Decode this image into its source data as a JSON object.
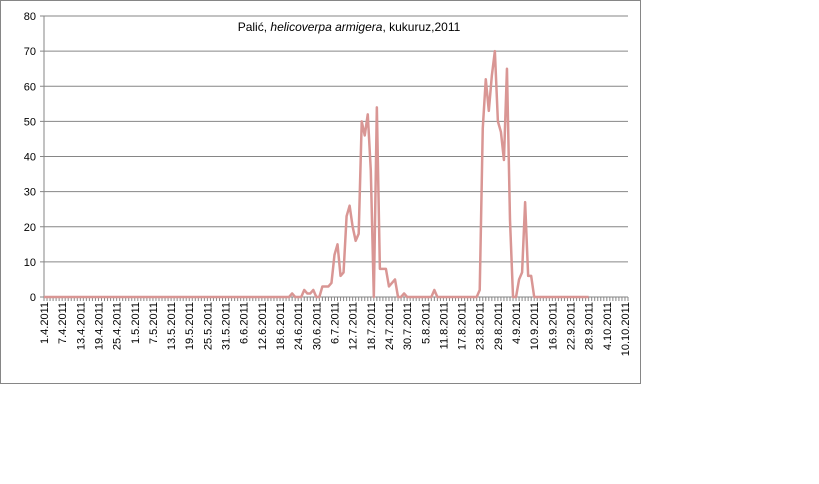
{
  "chart_data": {
    "type": "line",
    "title_parts": [
      {
        "text": "Palić, ",
        "italic": false
      },
      {
        "text": "helicoverpa armigera",
        "italic": true
      },
      {
        "text": ", kukuruz,2011",
        "italic": false
      }
    ],
    "xlabel": "",
    "ylabel": "",
    "ylim": [
      0,
      80
    ],
    "y_ticks": [
      0,
      10,
      20,
      30,
      40,
      50,
      60,
      70,
      80
    ],
    "grid": true,
    "legend": "none",
    "start_date": "1.4.2011",
    "x_tick_labels": [
      "1.4.2011",
      "7.4.2011",
      "13.4.2011",
      "19.4.2011",
      "25.4.2011",
      "1.5.2011",
      "7.5.2011",
      "13.5.2011",
      "19.5.2011",
      "25.5.2011",
      "31.5.2011",
      "6.6.2011",
      "12.6.2011",
      "18.6.2011",
      "24.6.2011",
      "30.6.2011",
      "6.7.2011",
      "12.7.2011",
      "18.7.2011",
      "24.7.2011",
      "30.7.2011",
      "5.8.2011",
      "11.8.2011",
      "17.8.2011",
      "23.8.2011",
      "29.8.2011",
      "4.9.2011",
      "10.9.2011",
      "16.9.2011",
      "22.9.2011",
      "28.9.2011",
      "4.10.2011",
      "10.10.2011"
    ],
    "series": [
      {
        "name": "",
        "color": "#d99694",
        "x": [
          "1.4.2011",
          "20.6.2011",
          "21.6.2011",
          "22.6.2011",
          "23.6.2011",
          "24.6.2011",
          "25.6.2011",
          "26.6.2011",
          "27.6.2011",
          "28.6.2011",
          "29.6.2011",
          "30.6.2011",
          "1.7.2011",
          "2.7.2011",
          "3.7.2011",
          "4.7.2011",
          "5.7.2011",
          "6.7.2011",
          "7.7.2011",
          "8.7.2011",
          "9.7.2011",
          "10.7.2011",
          "11.7.2011",
          "12.7.2011",
          "13.7.2011",
          "14.7.2011",
          "15.7.2011",
          "16.7.2011",
          "17.7.2011",
          "18.7.2011",
          "19.7.2011",
          "20.7.2011",
          "21.7.2011",
          "22.7.2011",
          "23.7.2011",
          "24.7.2011",
          "25.7.2011",
          "26.7.2011",
          "27.7.2011",
          "28.7.2011",
          "29.7.2011",
          "30.7.2011",
          "31.7.2011",
          "7.8.2011",
          "8.8.2011",
          "9.8.2011",
          "22.8.2011",
          "23.8.2011",
          "24.8.2011",
          "25.8.2011",
          "26.8.2011",
          "27.8.2011",
          "28.8.2011",
          "29.8.2011",
          "30.8.2011",
          "31.8.2011",
          "1.9.2011",
          "2.9.2011",
          "3.9.2011",
          "4.9.2011",
          "5.9.2011",
          "6.9.2011",
          "7.9.2011",
          "8.9.2011",
          "9.9.2011",
          "10.9.2011",
          "11.9.2011",
          "28.9.2011"
        ],
        "values": [
          0,
          0,
          0,
          1,
          0,
          0,
          0,
          2,
          1,
          1,
          2,
          0,
          0,
          3,
          3,
          3,
          4,
          12,
          15,
          6,
          7,
          23,
          26,
          20,
          16,
          18,
          50,
          46,
          52,
          36,
          0,
          54,
          8,
          8,
          8,
          3,
          4,
          5,
          0,
          0,
          1,
          0,
          0,
          0,
          2,
          0,
          0,
          2,
          48,
          62,
          53,
          63,
          70,
          50,
          47,
          39,
          65,
          22,
          0,
          0,
          5,
          7,
          27,
          6,
          6,
          0,
          0,
          0
        ]
      }
    ]
  }
}
